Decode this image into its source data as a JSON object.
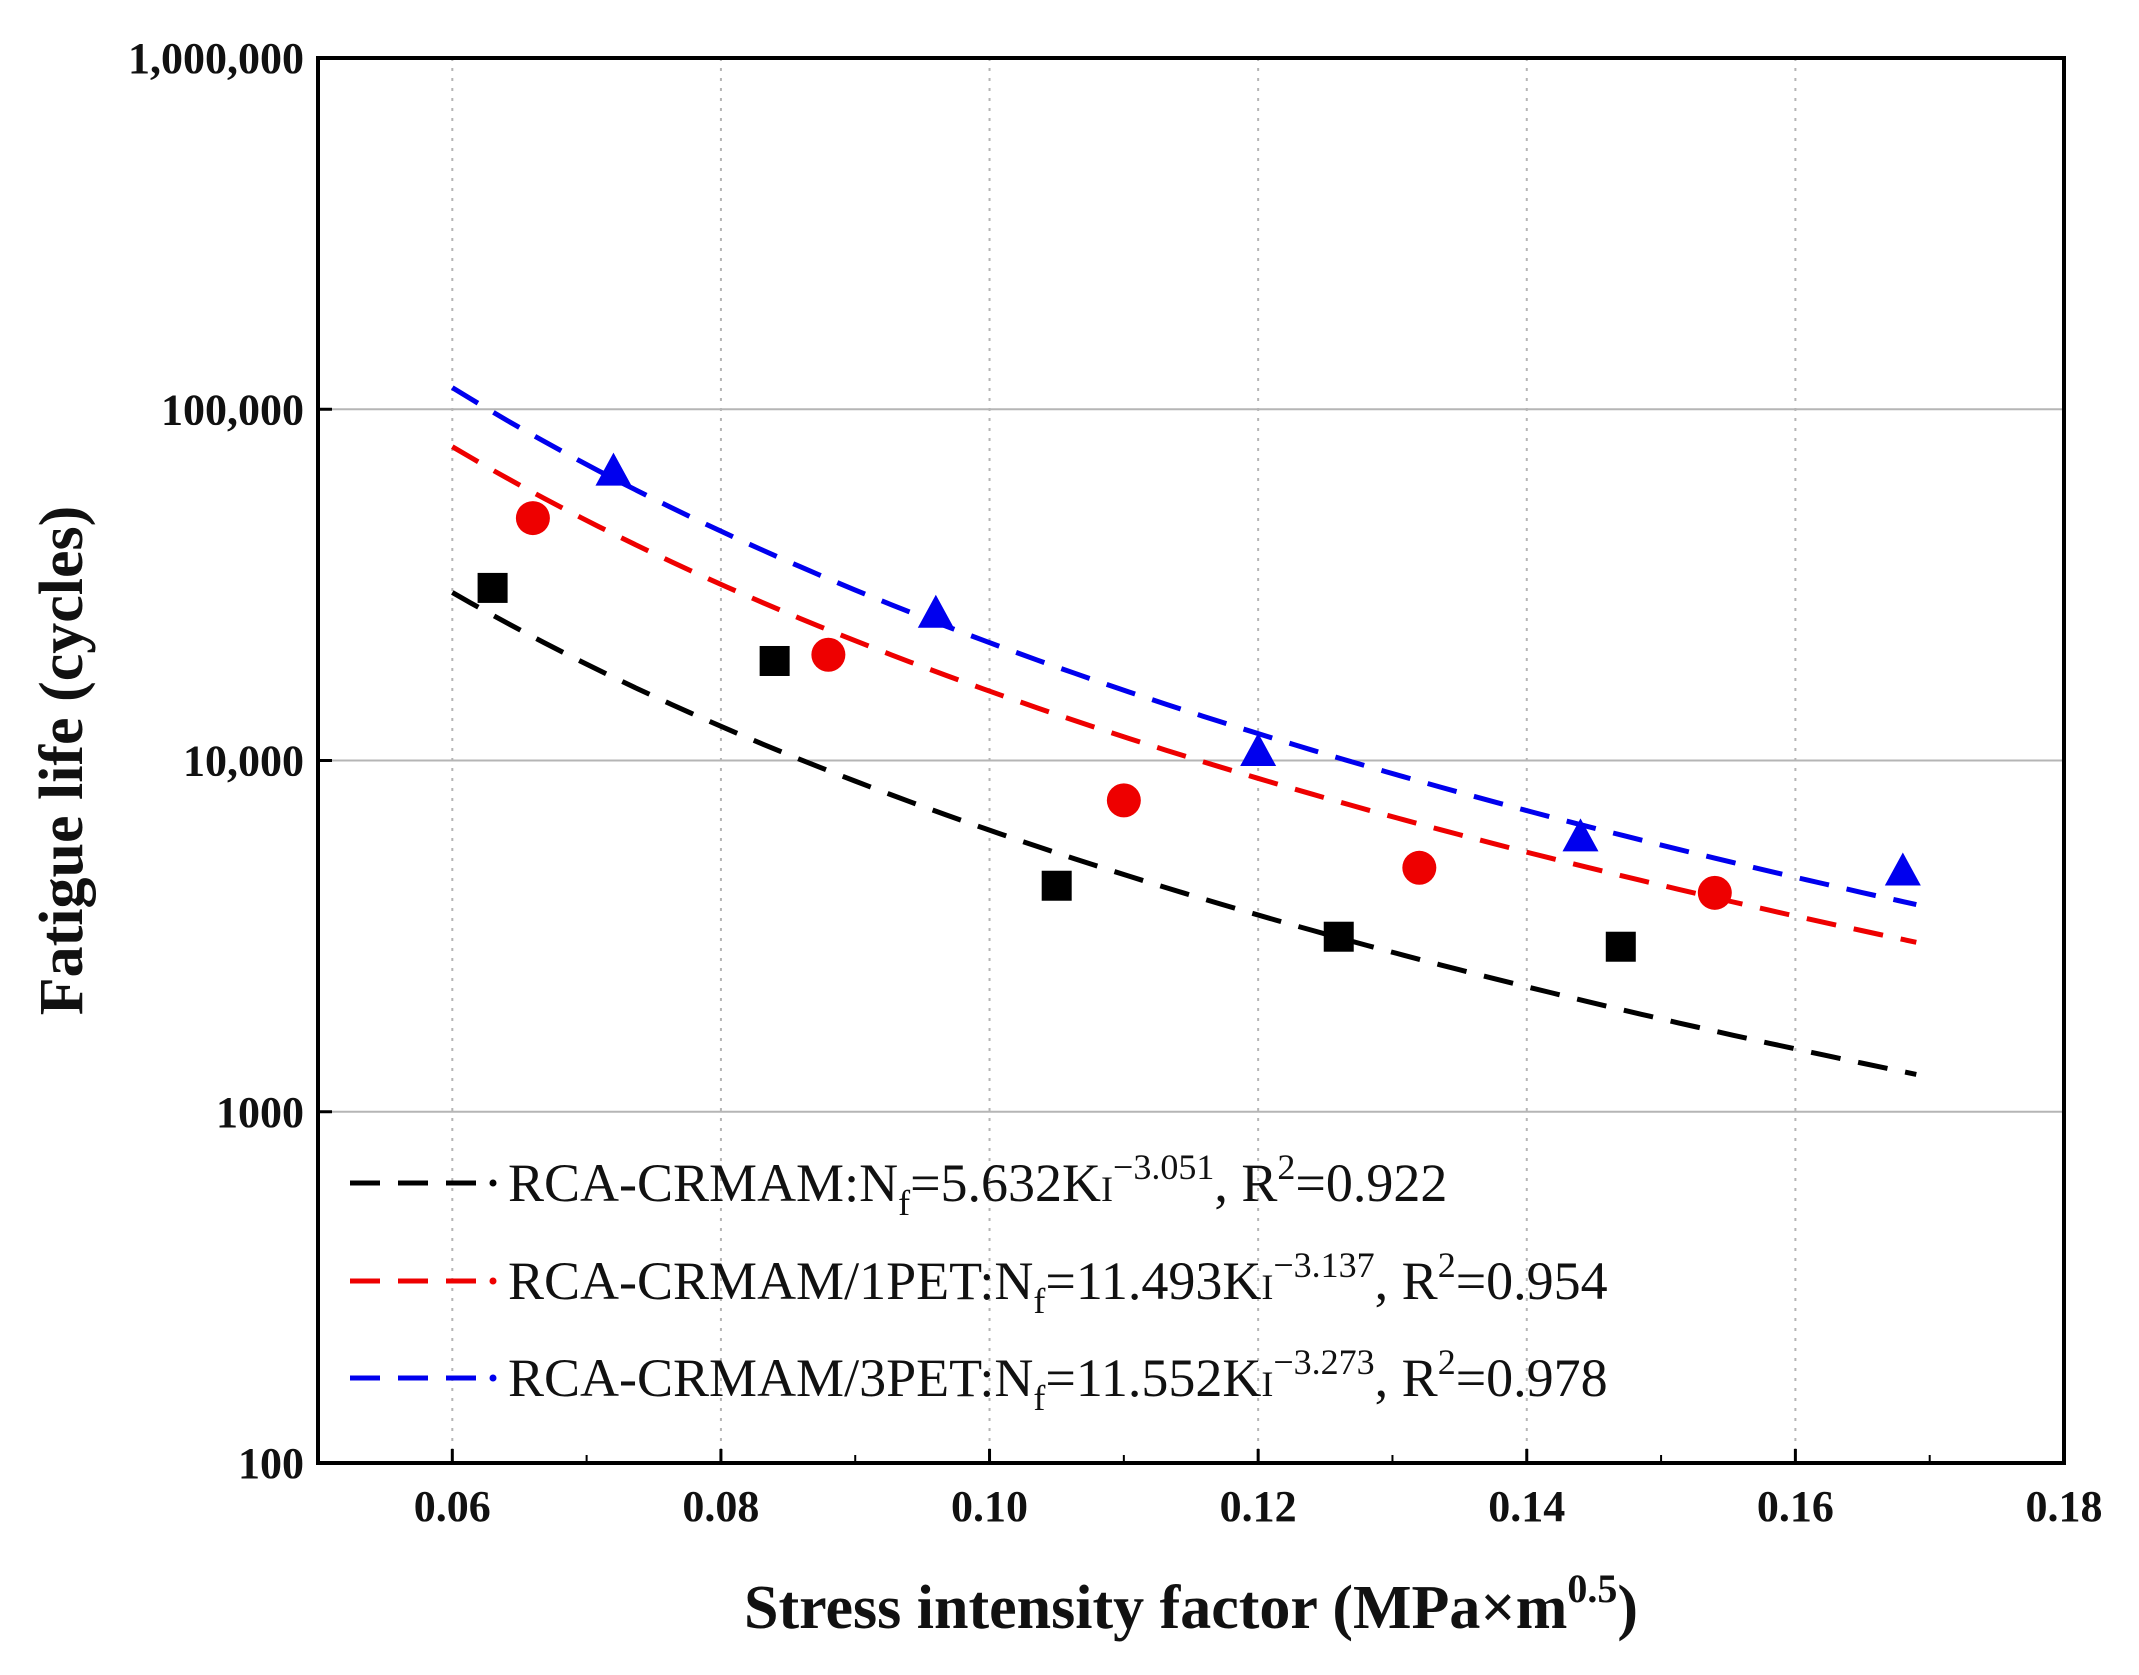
{
  "chart_data": {
    "type": "scatter",
    "xlabel": "Stress intensity factor (MPa×m",
    "xlabel_sup": "0.5",
    "xlabel_end": ")",
    "ylabel": "Fatigue life (cycles)",
    "xlim": [
      0.05,
      0.18
    ],
    "ylim": [
      100,
      1000000
    ],
    "y_scale": "log",
    "x_ticks": [
      0.06,
      0.08,
      0.1,
      0.12,
      0.14,
      0.16,
      0.18
    ],
    "x_tick_labels": [
      "0.06",
      "0.08",
      "0.10",
      "0.12",
      "0.14",
      "0.16",
      "0.18"
    ],
    "y_ticks": [
      100,
      1000,
      10000,
      100000,
      1000000
    ],
    "y_tick_labels": [
      "100",
      "1000",
      "10,000",
      "100,000",
      "1,000,000"
    ],
    "grid": {
      "vertical": "dotted",
      "horizontal": "solid"
    },
    "legend_position": "bottom-left",
    "series": [
      {
        "name": "RCA-CRMAM",
        "color": "#000000",
        "marker": "square",
        "x": [
          0.063,
          0.084,
          0.105,
          0.126,
          0.147
        ],
        "y": [
          31000,
          19200,
          4400,
          3150,
          2950
        ],
        "fit": {
          "a": 5.632,
          "b": -3.051,
          "x_range": [
            0.06,
            0.169
          ]
        },
        "legend": {
          "prefix": "RCA-CRMAM:N",
          "sub": "f",
          "mid": "=5.632K",
          "kchar": "I",
          "exp": "−3.051",
          "rpart": ", R",
          "rsup": "2",
          "rval": "=0.922"
        }
      },
      {
        "name": "RCA-CRMAM/1PET",
        "color": "#ee0000",
        "marker": "circle",
        "x": [
          0.066,
          0.088,
          0.11,
          0.132,
          0.154
        ],
        "y": [
          49000,
          20000,
          7700,
          4950,
          4200
        ],
        "fit": {
          "a": 11.493,
          "b": -3.137,
          "x_range": [
            0.06,
            0.169
          ]
        },
        "legend": {
          "prefix": "RCA-CRMAM/1PET:N",
          "sub": "f",
          "mid": "=11.493K",
          "kchar": "I",
          "exp": "−3.137",
          "rpart": ", R",
          "rsup": "2",
          "rval": "=0.954"
        }
      },
      {
        "name": "RCA-CRMAM/3PET",
        "color": "#0000ee",
        "marker": "triangle",
        "x": [
          0.072,
          0.096,
          0.12,
          0.144,
          0.168
        ],
        "y": [
          66000,
          26000,
          10500,
          6000,
          4800
        ],
        "fit": {
          "a": 11.552,
          "b": -3.273,
          "x_range": [
            0.06,
            0.169
          ]
        },
        "legend": {
          "prefix": "RCA-CRMAM/3PET:N",
          "sub": "f",
          "mid": "=11.552K",
          "kchar": "I",
          "exp": "−3.273",
          "rpart": ", R",
          "rsup": "2",
          "rval": "=0.978"
        }
      }
    ]
  }
}
